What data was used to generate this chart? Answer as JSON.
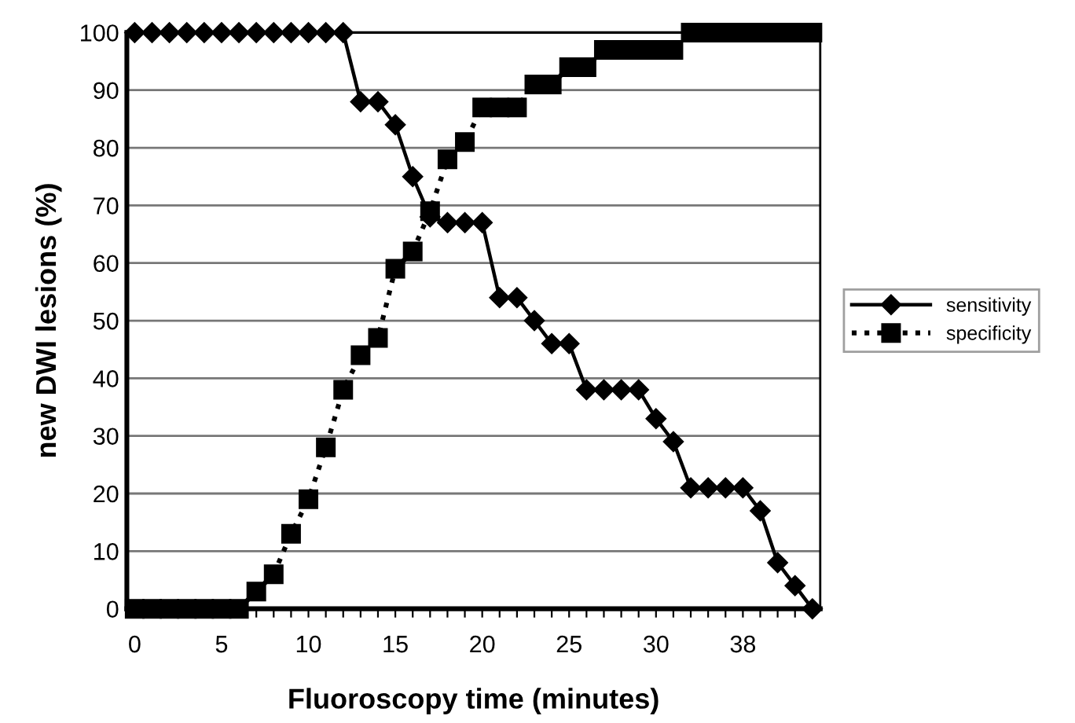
{
  "chart_data": {
    "type": "line",
    "xlabel": "Fluoroscopy time (minutes)",
    "ylabel": "new DWI lesions (%)",
    "categories": [
      "0",
      null,
      null,
      null,
      null,
      "5",
      null,
      null,
      null,
      null,
      "10",
      null,
      null,
      null,
      null,
      "15",
      null,
      null,
      null,
      null,
      "20",
      null,
      null,
      null,
      null,
      "25",
      null,
      null,
      null,
      null,
      "30",
      null,
      null,
      null,
      null,
      "38",
      null,
      null,
      null,
      null
    ],
    "series": [
      {
        "name": "sensitivity",
        "color": "#000000",
        "marker": "diamond",
        "line_style": "solid",
        "values": [
          100,
          100,
          100,
          100,
          100,
          100,
          100,
          100,
          100,
          100,
          100,
          100,
          100,
          88,
          88,
          84,
          75,
          68,
          67,
          67,
          67,
          54,
          54,
          50,
          46,
          46,
          38,
          38,
          38,
          38,
          33,
          29,
          21,
          21,
          21,
          21,
          17,
          8,
          4,
          0
        ]
      },
      {
        "name": "specificity",
        "color": "#000000",
        "marker": "square",
        "line_style": "dotted",
        "values": [
          0,
          0,
          0,
          0,
          0,
          0,
          0,
          3,
          6,
          13,
          19,
          28,
          38,
          44,
          47,
          59,
          62,
          69,
          78,
          81,
          87,
          87,
          87,
          91,
          91,
          94,
          94,
          97,
          97,
          97,
          97,
          97,
          100,
          100,
          100,
          100,
          100,
          100,
          100,
          100
        ]
      }
    ],
    "ylim": [
      0,
      100
    ],
    "yticks": [
      0,
      10,
      20,
      30,
      40,
      50,
      60,
      70,
      80,
      90,
      100
    ],
    "grid": "y",
    "legend": "right"
  }
}
